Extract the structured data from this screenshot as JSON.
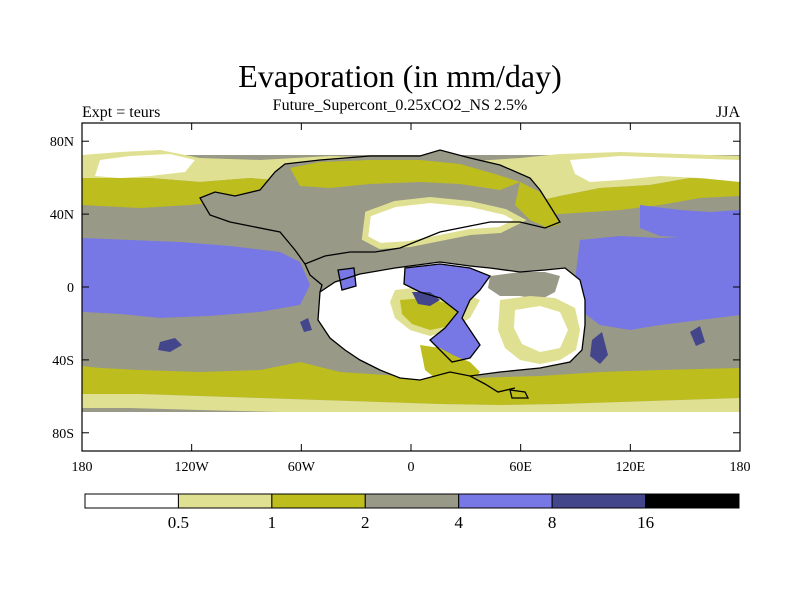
{
  "title": "Evaporation (in mm/day)",
  "subtitle": "Future_Supercont_0.25xCO2_NS 2.5%",
  "left_label": "Expt = teurs",
  "right_label": "JJA",
  "colors": {
    "c0": "#ffffff",
    "c1": "#e0e092",
    "c2": "#bdbd1e",
    "c3": "#999988",
    "c4": "#7777e6",
    "c5": "#44468c",
    "c6": "#000000",
    "coast": "#000000"
  },
  "chart_data": {
    "type": "heatmap",
    "x_ticks": [
      {
        "value": -180,
        "label": "180"
      },
      {
        "value": -120,
        "label": "120W"
      },
      {
        "value": -60,
        "label": "60W"
      },
      {
        "value": 0,
        "label": "0"
      },
      {
        "value": 60,
        "label": "60E"
      },
      {
        "value": 120,
        "label": "120E"
      },
      {
        "value": 180,
        "label": "180"
      }
    ],
    "y_ticks": [
      {
        "value": 80,
        "label": "80N"
      },
      {
        "value": 40,
        "label": "40N"
      },
      {
        "value": 0,
        "label": "0"
      },
      {
        "value": -40,
        "label": "40S"
      },
      {
        "value": -80,
        "label": "80S"
      }
    ],
    "xlim": [
      -180,
      180
    ],
    "ylim": [
      -90,
      90
    ],
    "colorbar": {
      "levels": [
        "0.5",
        "1",
        "2",
        "4",
        "8",
        "16"
      ],
      "bin_colors": [
        "#ffffff",
        "#e0e092",
        "#bdbd1e",
        "#999988",
        "#7777e6",
        "#44468c",
        "#000000"
      ]
    }
  }
}
